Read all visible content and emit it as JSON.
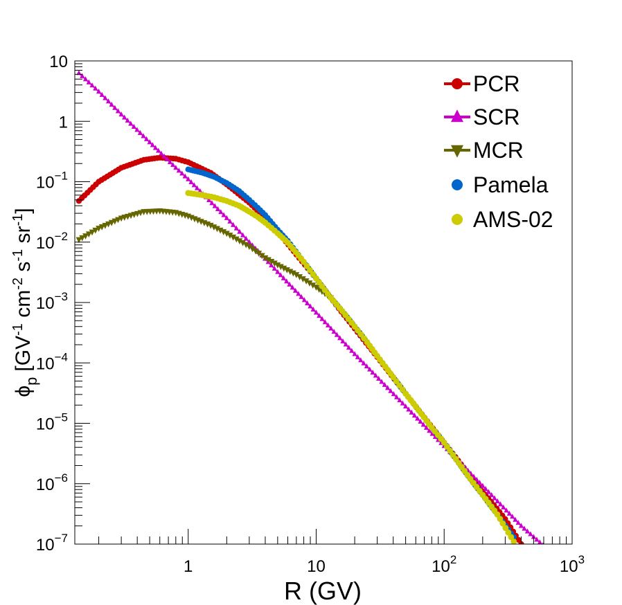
{
  "chart_data": {
    "type": "scatter",
    "xlabel": "R (GV)",
    "ylabel": {
      "base": "ϕ",
      "sub": "p",
      "unit_parts": [
        {
          "t": "[GV"
        },
        {
          "t": "-1",
          "sup": true
        },
        {
          "t": " cm"
        },
        {
          "t": "-2",
          "sup": true
        },
        {
          "t": " s"
        },
        {
          "t": "-1",
          "sup": true
        },
        {
          "t": " sr"
        },
        {
          "t": "-1",
          "sup": true
        },
        {
          "t": "]"
        }
      ]
    },
    "x_scale": "log",
    "y_scale": "log",
    "xlim": [
      0.13,
      1000
    ],
    "ylim": [
      1e-07,
      10
    ],
    "x_ticks": [
      {
        "value": 1,
        "base": "1",
        "exp": ""
      },
      {
        "value": 10,
        "base": "10",
        "exp": ""
      },
      {
        "value": 100,
        "base": "10",
        "exp": "2"
      },
      {
        "value": 1000,
        "base": "10",
        "exp": "3"
      }
    ],
    "y_ticks": [
      {
        "value": 10,
        "base": "10",
        "exp": ""
      },
      {
        "value": 1,
        "base": "1",
        "exp": ""
      },
      {
        "value": 0.1,
        "base": "10",
        "exp": "−1"
      },
      {
        "value": 0.01,
        "base": "10",
        "exp": "−2"
      },
      {
        "value": 0.001,
        "base": "10",
        "exp": "−3"
      },
      {
        "value": 0.0001,
        "base": "10",
        "exp": "−4"
      },
      {
        "value": 1e-05,
        "base": "10",
        "exp": "−5"
      },
      {
        "value": 1e-06,
        "base": "10",
        "exp": "−6"
      },
      {
        "value": 1e-07,
        "base": "10",
        "exp": "−7"
      }
    ],
    "legend_position": "top-right",
    "grid": false,
    "series": [
      {
        "name": "PCR",
        "marker": "circle",
        "line": true,
        "color": "#cc0000",
        "points": [
          [
            0.14,
            0.048
          ],
          [
            0.2,
            0.1
          ],
          [
            0.3,
            0.17
          ],
          [
            0.45,
            0.23
          ],
          [
            0.6,
            0.25
          ],
          [
            0.8,
            0.24
          ],
          [
            1.0,
            0.21
          ],
          [
            1.5,
            0.14
          ],
          [
            2.0,
            0.09
          ],
          [
            3.0,
            0.045
          ],
          [
            4.0,
            0.025
          ],
          [
            5.0,
            0.015
          ],
          [
            7.0,
            0.0062
          ],
          [
            10.0,
            0.0025
          ],
          [
            15.0,
            0.0008
          ],
          [
            20.0,
            0.00037
          ],
          [
            30.0,
            0.000125
          ],
          [
            50.0,
            3.1e-05
          ],
          [
            70.0,
            1.25e-05
          ],
          [
            100.0,
            4.8e-06
          ],
          [
            150.0,
            1.6e-06
          ],
          [
            200.0,
            7.5e-07
          ],
          [
            300.0,
            2.6e-07
          ],
          [
            400.0,
            1e-07
          ]
        ]
      },
      {
        "name": "SCR",
        "marker": "triangle-up",
        "line": true,
        "color": "#cc00cc",
        "points": [
          [
            0.14,
            6.3
          ],
          [
            0.2,
            3.1
          ],
          [
            0.3,
            1.3
          ],
          [
            0.5,
            0.45
          ],
          [
            0.8,
            0.17
          ],
          [
            1.0,
            0.11
          ],
          [
            2.0,
            0.025
          ],
          [
            3.0,
            0.01
          ],
          [
            5.0,
            0.0032
          ],
          [
            10.0,
            0.00068
          ],
          [
            20.0,
            0.00014
          ],
          [
            50.0,
            1.9e-05
          ],
          [
            100.0,
            4.2e-06
          ],
          [
            200.0,
            9.2e-07
          ],
          [
            400.0,
            2e-07
          ],
          [
            700.0,
            7e-08
          ]
        ]
      },
      {
        "name": "MCR",
        "marker": "triangle-down",
        "line": true,
        "color": "#666600",
        "points": [
          [
            0.14,
            0.011
          ],
          [
            0.2,
            0.017
          ],
          [
            0.3,
            0.025
          ],
          [
            0.45,
            0.032
          ],
          [
            0.6,
            0.033
          ],
          [
            0.8,
            0.031
          ],
          [
            1.0,
            0.027
          ],
          [
            1.5,
            0.019
          ],
          [
            2.0,
            0.014
          ],
          [
            3.0,
            0.0085
          ],
          [
            4.0,
            0.0055
          ],
          [
            5.0,
            0.0042
          ],
          [
            7.0,
            0.0029
          ],
          [
            10.0,
            0.0018
          ],
          [
            13.0,
            0.0012
          ]
        ]
      },
      {
        "name": "Pamela",
        "marker": "circle",
        "line": false,
        "color": "#0066cc",
        "points": [
          [
            1.0,
            0.16
          ],
          [
            1.3,
            0.14
          ],
          [
            1.6,
            0.12
          ],
          [
            2.0,
            0.095
          ],
          [
            2.5,
            0.07
          ],
          [
            3.0,
            0.05
          ],
          [
            3.5,
            0.037
          ],
          [
            4.0,
            0.028
          ],
          [
            5.0,
            0.016
          ],
          [
            6.0,
            0.0105
          ],
          [
            8.0,
            0.0047
          ],
          [
            10.0,
            0.0025
          ],
          [
            13.0,
            0.0012
          ],
          [
            16.0,
            0.00072
          ],
          [
            20.0,
            0.0004
          ],
          [
            25.0,
            0.00022
          ],
          [
            30.0,
            0.00013
          ],
          [
            40.0,
            5.8e-05
          ],
          [
            50.0,
            3.1e-05
          ],
          [
            60.0,
            1.9e-05
          ],
          [
            80.0,
            8.5e-06
          ],
          [
            100.0,
            4.8e-06
          ],
          [
            130.0,
            2.2e-06
          ],
          [
            160.0,
            1.2e-06
          ],
          [
            200.0,
            6.5e-07
          ],
          [
            260.0,
            3.1e-07
          ],
          [
            350.0,
            1.3e-07
          ]
        ]
      },
      {
        "name": "AMS-02",
        "marker": "circle",
        "line": false,
        "color": "#cccc00",
        "points": [
          [
            1.0,
            0.065
          ],
          [
            1.3,
            0.06
          ],
          [
            1.6,
            0.055
          ],
          [
            2.0,
            0.048
          ],
          [
            2.5,
            0.04
          ],
          [
            3.0,
            0.032
          ],
          [
            3.5,
            0.026
          ],
          [
            4.0,
            0.021
          ],
          [
            5.0,
            0.014
          ],
          [
            6.0,
            0.0098
          ],
          [
            8.0,
            0.0047
          ],
          [
            10.0,
            0.0025
          ],
          [
            13.0,
            0.0012
          ],
          [
            16.0,
            0.00072
          ],
          [
            20.0,
            0.0004
          ],
          [
            25.0,
            0.00022
          ],
          [
            30.0,
            0.00013
          ],
          [
            40.0,
            5.8e-05
          ],
          [
            50.0,
            3.1e-05
          ],
          [
            60.0,
            1.9e-05
          ],
          [
            80.0,
            8.5e-06
          ],
          [
            100.0,
            4.8e-06
          ],
          [
            130.0,
            2.2e-06
          ],
          [
            160.0,
            1.2e-06
          ],
          [
            200.0,
            6.5e-07
          ],
          [
            260.0,
            3.1e-07
          ],
          [
            350.0,
            1.1e-07
          ]
        ]
      }
    ]
  }
}
